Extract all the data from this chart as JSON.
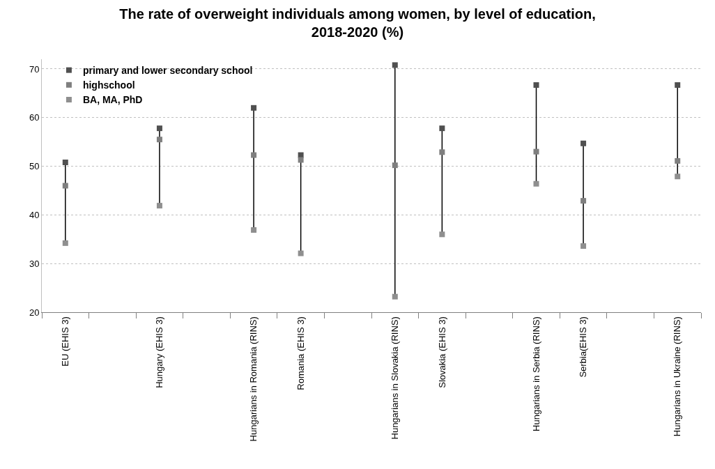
{
  "chart_data": {
    "type": "scatter",
    "title": "The rate of overweight individuals among women, by level of education, 2018-2020 (%)",
    "categories": [
      "EU (EHIS 3)",
      null,
      "Hungary (EHIS 3)",
      null,
      "Hungarians in Romania (RINS)",
      "Romania (EHIS 3)",
      null,
      "Hungarians in Slovakia (RINS)",
      "Slovakia (EHIS 3)",
      null,
      "Hungarians in Serbia (RINS)",
      "Serbia(EHIS 3)",
      null,
      "Hungarians in Ukraine (RINS)"
    ],
    "series": [
      {
        "name": "primary and lower secondary school",
        "color": "#505050",
        "values": [
          50.8,
          null,
          57.8,
          null,
          62.0,
          52.3,
          null,
          70.8,
          57.8,
          null,
          66.7,
          54.7,
          null,
          66.7
        ]
      },
      {
        "name": "highschool",
        "color": "#7f7f7f",
        "values": [
          46.0,
          null,
          55.5,
          null,
          52.3,
          51.3,
          null,
          50.2,
          52.9,
          null,
          53.0,
          42.9,
          null,
          51.1
        ]
      },
      {
        "name": "BA, MA, PhD",
        "color": "#8f8f8f",
        "values": [
          34.2,
          null,
          41.9,
          null,
          36.9,
          32.1,
          null,
          23.2,
          36.0,
          null,
          46.4,
          33.6,
          null,
          47.9
        ]
      }
    ],
    "ylim": [
      20,
      72
    ],
    "yticks": [
      20,
      30,
      40,
      50,
      60,
      70
    ],
    "grid": "y",
    "legend": "top left",
    "marker": "square"
  }
}
